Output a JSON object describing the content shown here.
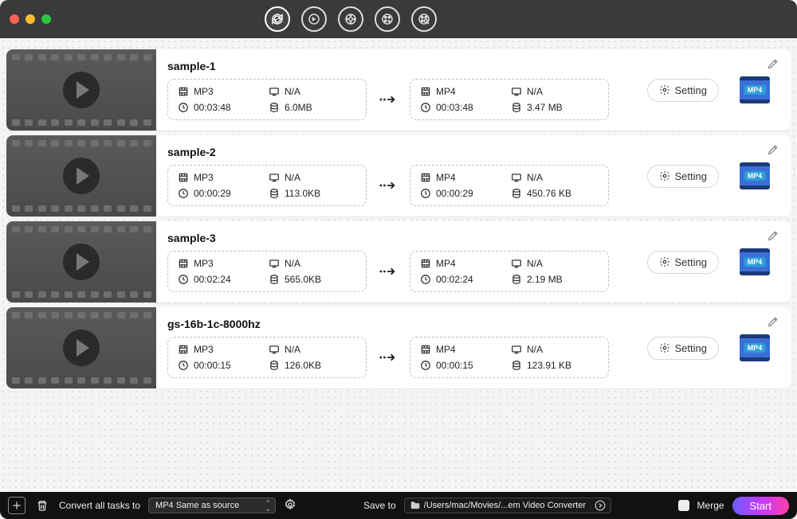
{
  "colors": {
    "titlebar_bg": "#3a3a3a",
    "row_bg": "#ffffff",
    "dashed_border": "#c1c1c1",
    "badge_film": "#3b6fd6",
    "badge_film_dark": "#1a3a7a",
    "badge_label_bg": "#2c9fd8",
    "start_gradient": [
      "#6a5cff",
      "#c63aff",
      "#ff3da8"
    ]
  },
  "toolbar": {
    "icons": [
      "sync",
      "sync-alt",
      "film-gear",
      "film-plus",
      "film-search"
    ],
    "active_index": 0
  },
  "items": [
    {
      "title": "sample-1",
      "source": {
        "format": "MP3",
        "display": "N/A",
        "duration": "00:03:48",
        "size": "6.0MB"
      },
      "target": {
        "format": "MP4",
        "display": "N/A",
        "duration": "00:03:48",
        "size": "3.47 MB"
      },
      "setting_label": "Setting",
      "badge": "MP4"
    },
    {
      "title": "sample-2",
      "source": {
        "format": "MP3",
        "display": "N/A",
        "duration": "00:00:29",
        "size": "113.0KB"
      },
      "target": {
        "format": "MP4",
        "display": "N/A",
        "duration": "00:00:29",
        "size": "450.76 KB"
      },
      "setting_label": "Setting",
      "badge": "MP4"
    },
    {
      "title": "sample-3",
      "source": {
        "format": "MP3",
        "display": "N/A",
        "duration": "00:02:24",
        "size": "565.0KB"
      },
      "target": {
        "format": "MP4",
        "display": "N/A",
        "duration": "00:02:24",
        "size": "2.19 MB"
      },
      "setting_label": "Setting",
      "badge": "MP4"
    },
    {
      "title": "gs-16b-1c-8000hz",
      "source": {
        "format": "MP3",
        "display": "N/A",
        "duration": "00:00:15",
        "size": "126.0KB"
      },
      "target": {
        "format": "MP4",
        "display": "N/A",
        "duration": "00:00:15",
        "size": "123.91 KB"
      },
      "setting_label": "Setting",
      "badge": "MP4"
    }
  ],
  "bottombar": {
    "convert_all_label": "Convert all tasks to",
    "format_select": "MP4 Same as source",
    "save_to_label": "Save to",
    "save_path": "/Users/mac/Movies/...em Video Converter",
    "merge_label": "Merge",
    "merge_checked": false,
    "start_label": "Start"
  }
}
